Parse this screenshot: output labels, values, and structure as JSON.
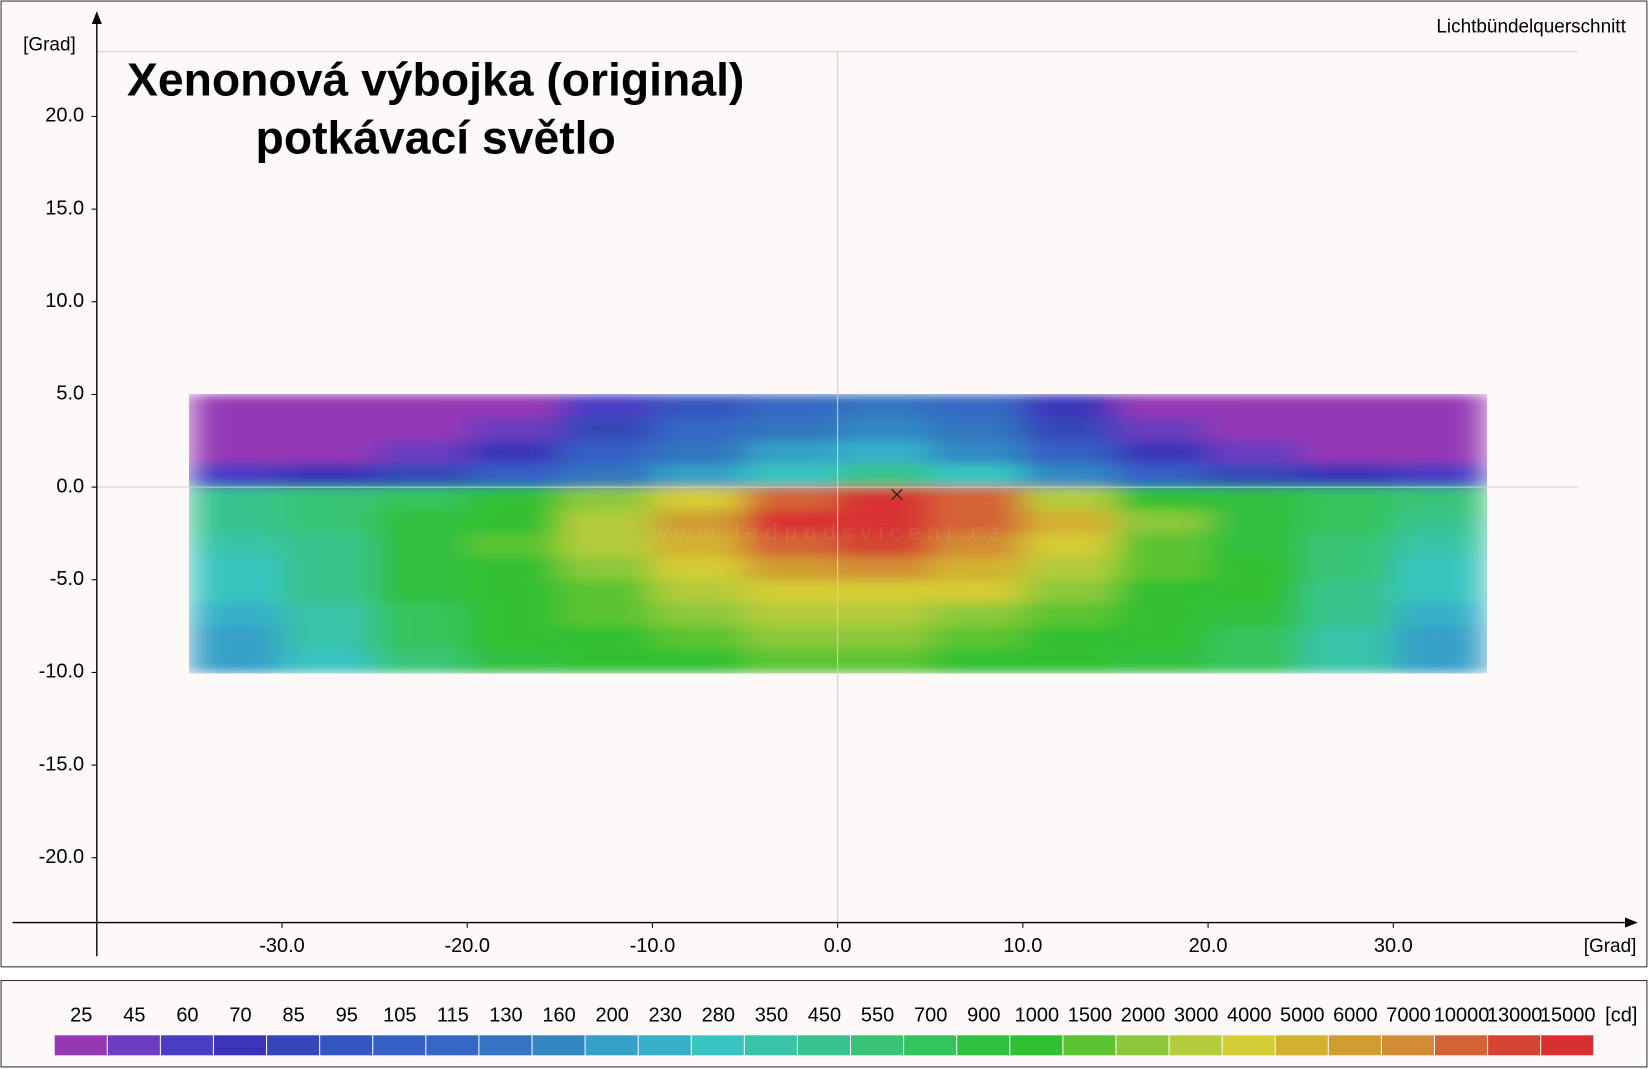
{
  "chart_data": {
    "type": "heatmap",
    "title": [
      "Xenonová výbojka (original)",
      "potkávací světlo"
    ],
    "subtitle": "Lichtbündelquerschnitt",
    "x_label": "[Grad]",
    "y_label": "[Grad]",
    "watermark": "w w w . l e d p o d s v i c e n i . c z",
    "xlim": [
      -40,
      40
    ],
    "ylim": [
      -23.5,
      23.5
    ],
    "xticks": [
      {
        "value": -30,
        "label": "-30.0"
      },
      {
        "value": -20,
        "label": "-20.0"
      },
      {
        "value": -10,
        "label": "-10.0"
      },
      {
        "value": 0,
        "label": "0.0"
      },
      {
        "value": 10,
        "label": "10.0"
      },
      {
        "value": 20,
        "label": "20.0"
      },
      {
        "value": 30,
        "label": "30.0"
      }
    ],
    "yticks": [
      {
        "value": -20,
        "label": "-20.0"
      },
      {
        "value": -15,
        "label": "-15.0"
      },
      {
        "value": -10,
        "label": "-10.0"
      },
      {
        "value": -5,
        "label": "-5.0"
      },
      {
        "value": 0,
        "label": "0.0"
      },
      {
        "value": 5,
        "label": "5.0"
      },
      {
        "value": 10,
        "label": "10.0"
      },
      {
        "value": 15,
        "label": "15.0"
      },
      {
        "value": 20,
        "label": "20.0"
      }
    ],
    "zero_lines": true,
    "max_point": {
      "x": 3.2,
      "y": -0.4
    },
    "z_x": [
      -32.5,
      -27.5,
      -22.5,
      -17.5,
      -12.5,
      -7.5,
      -2.5,
      2.5,
      7.5,
      12.5,
      17.5,
      22.5,
      27.5,
      32.5
    ],
    "z_y": [
      4.375,
      3.125,
      1.875,
      0.625,
      -0.625,
      -1.875,
      -3.125,
      -4.375,
      -5.625,
      -6.875,
      -8.125,
      -9.375
    ],
    "z": [
      [
        25,
        25,
        25,
        25,
        60,
        95,
        115,
        130,
        115,
        70,
        25,
        25,
        25,
        25
      ],
      [
        25,
        25,
        25,
        45,
        85,
        115,
        130,
        160,
        130,
        85,
        45,
        25,
        25,
        25
      ],
      [
        25,
        25,
        45,
        70,
        105,
        130,
        200,
        230,
        160,
        105,
        70,
        45,
        25,
        25
      ],
      [
        60,
        70,
        85,
        105,
        130,
        200,
        280,
        450,
        280,
        160,
        105,
        85,
        70,
        60
      ],
      [
        450,
        550,
        700,
        1000,
        2000,
        4000,
        10000,
        15000,
        10000,
        3000,
        1000,
        900,
        700,
        550
      ],
      [
        450,
        550,
        900,
        1000,
        3000,
        6000,
        15000,
        15000,
        10000,
        5000,
        2000,
        900,
        700,
        450
      ],
      [
        350,
        450,
        900,
        1500,
        3000,
        5000,
        10000,
        13000,
        7000,
        4000,
        1500,
        900,
        550,
        350
      ],
      [
        280,
        450,
        900,
        1000,
        2000,
        4000,
        6000,
        7000,
        5000,
        3000,
        1500,
        1000,
        550,
        280
      ],
      [
        280,
        450,
        900,
        1000,
        1500,
        3000,
        4000,
        4000,
        4000,
        2000,
        1000,
        1000,
        450,
        280
      ],
      [
        230,
        350,
        700,
        1000,
        1500,
        2000,
        3000,
        3000,
        2000,
        1500,
        1000,
        900,
        450,
        230
      ],
      [
        200,
        350,
        700,
        1000,
        1000,
        1500,
        2000,
        2000,
        1500,
        1000,
        1000,
        700,
        350,
        200
      ],
      [
        200,
        280,
        550,
        900,
        1000,
        1000,
        1500,
        1500,
        1000,
        1000,
        900,
        700,
        350,
        200
      ]
    ],
    "levels": [
      25,
      45,
      60,
      70,
      85,
      95,
      105,
      115,
      130,
      160,
      200,
      230,
      280,
      350,
      450,
      550,
      700,
      900,
      1000,
      1500,
      2000,
      3000,
      4000,
      5000,
      6000,
      7000,
      10000,
      13000,
      15000
    ],
    "level_colors": [
      "#9438b5",
      "#6a3dbf",
      "#4a3cc4",
      "#3a35b8",
      "#3446b8",
      "#3455c0",
      "#3560c4",
      "#3468c4",
      "#3374c0",
      "#3388c4",
      "#35a0c8",
      "#36b0c8",
      "#38c4c0",
      "#38c4a8",
      "#38c48c",
      "#38c474",
      "#34c45c",
      "#30c040",
      "#30c030",
      "#5cc430",
      "#8cc83a",
      "#b4cc3a",
      "#d4cc34",
      "#d4b030",
      "#d09c30",
      "#d48c34",
      "#d46434",
      "#d44430",
      "#d83030"
    ],
    "unit": "[cd]"
  }
}
